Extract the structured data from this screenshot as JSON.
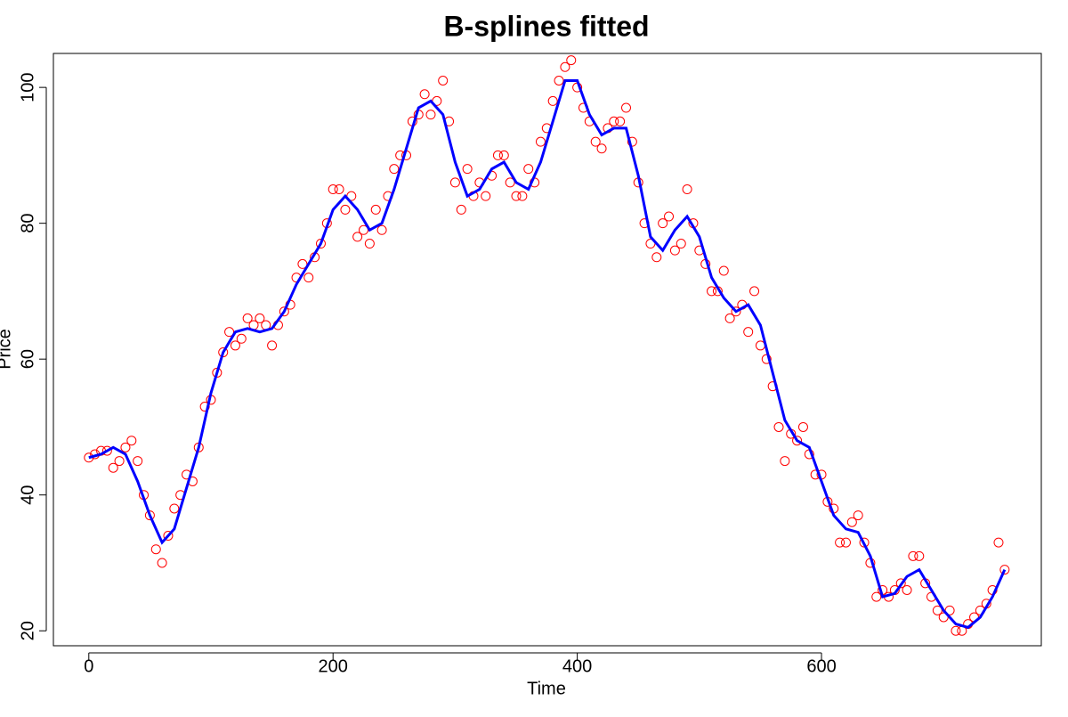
{
  "chart_data": {
    "type": "scatter",
    "title": "B-splines fitted",
    "x_label": "Time",
    "y_label": "Price",
    "xlim": [
      -29,
      780
    ],
    "ylim": [
      17.8,
      105
    ],
    "xticks": [
      0,
      200,
      400,
      600
    ],
    "yticks": [
      20,
      40,
      60,
      80,
      100
    ],
    "series": [
      {
        "style": "points",
        "color": "#ff0000",
        "x": [
          0,
          5,
          10,
          15,
          20,
          25,
          30,
          35,
          40,
          45,
          50,
          55,
          60,
          65,
          70,
          75,
          80,
          85,
          90,
          95,
          100,
          105,
          110,
          115,
          120,
          125,
          130,
          135,
          140,
          145,
          150,
          155,
          160,
          165,
          170,
          175,
          180,
          185,
          190,
          195,
          200,
          205,
          210,
          215,
          220,
          225,
          230,
          235,
          240,
          245,
          250,
          255,
          260,
          265,
          270,
          275,
          280,
          285,
          290,
          295,
          300,
          305,
          310,
          315,
          320,
          325,
          330,
          335,
          340,
          345,
          350,
          355,
          360,
          365,
          370,
          375,
          380,
          385,
          390,
          395,
          400,
          405,
          410,
          415,
          420,
          425,
          430,
          435,
          440,
          445,
          450,
          455,
          460,
          465,
          470,
          475,
          480,
          485,
          490,
          495,
          500,
          505,
          510,
          515,
          520,
          525,
          530,
          535,
          540,
          545,
          550,
          555,
          560,
          565,
          570,
          575,
          580,
          585,
          590,
          595,
          600,
          605,
          610,
          615,
          620,
          625,
          630,
          635,
          640,
          645,
          650,
          655,
          660,
          665,
          670,
          675,
          680,
          685,
          690,
          695,
          700,
          705,
          710,
          715,
          720,
          725,
          730,
          735,
          740,
          745,
          750
        ],
        "values": [
          45.5,
          46,
          46.5,
          46.5,
          44,
          45,
          47,
          48,
          45,
          40,
          37,
          32,
          30,
          34,
          38,
          40,
          43,
          42,
          47,
          53,
          54,
          58,
          61,
          64,
          62,
          63,
          66,
          65,
          66,
          65,
          62,
          65,
          67,
          68,
          72,
          74,
          72,
          75,
          77,
          80,
          85,
          85,
          82,
          84,
          78,
          79,
          77,
          82,
          79,
          84,
          88,
          90,
          90,
          95,
          96,
          99,
          96,
          98,
          101,
          95,
          86,
          82,
          88,
          84,
          86,
          84,
          87,
          90,
          90,
          86,
          84,
          84,
          88,
          86,
          92,
          94,
          98,
          101,
          103,
          104,
          100,
          97,
          95,
          92,
          91,
          94,
          95,
          95,
          97,
          92,
          86,
          80,
          77,
          75,
          80,
          81,
          76,
          77,
          85,
          80,
          76,
          74,
          70,
          70,
          73,
          66,
          67,
          68,
          64,
          70,
          62,
          60,
          56,
          50,
          45,
          49,
          48,
          50,
          46,
          43,
          43,
          39,
          38,
          33,
          33,
          36,
          37,
          33,
          30,
          25,
          26,
          25,
          26,
          27,
          26,
          31,
          31,
          27,
          25,
          23,
          22,
          23,
          20,
          20,
          21,
          22,
          23,
          24,
          26,
          33,
          29
        ]
      },
      {
        "style": "line",
        "color": "#0000ff",
        "x": [
          0,
          10,
          20,
          30,
          40,
          50,
          60,
          70,
          80,
          90,
          100,
          110,
          120,
          130,
          140,
          150,
          160,
          170,
          180,
          190,
          200,
          210,
          220,
          230,
          240,
          250,
          260,
          270,
          280,
          290,
          300,
          310,
          320,
          330,
          340,
          350,
          360,
          370,
          380,
          390,
          400,
          410,
          420,
          430,
          440,
          450,
          460,
          470,
          480,
          490,
          500,
          510,
          520,
          530,
          540,
          550,
          560,
          570,
          580,
          590,
          600,
          610,
          620,
          630,
          640,
          650,
          660,
          670,
          680,
          690,
          700,
          710,
          720,
          730,
          740,
          750
        ],
        "values": [
          45.5,
          46,
          47,
          46,
          42,
          37,
          33,
          35,
          41,
          47,
          55,
          61,
          64,
          64.5,
          64,
          64.5,
          67,
          71,
          74,
          77,
          82,
          84,
          82,
          79,
          80,
          85,
          91,
          97,
          98,
          96,
          89,
          84,
          85,
          88,
          89,
          86,
          85,
          89,
          95,
          101,
          101,
          96,
          93,
          94,
          94,
          87,
          78,
          76,
          79,
          81,
          78,
          72,
          69,
          67,
          68,
          65,
          58,
          51,
          48,
          47,
          42,
          37,
          35,
          34.5,
          31,
          25,
          25.5,
          28,
          29,
          26,
          23,
          21,
          20.5,
          22,
          25,
          29
        ]
      }
    ]
  }
}
